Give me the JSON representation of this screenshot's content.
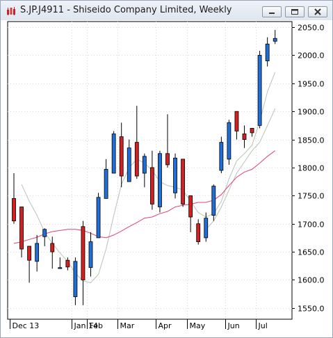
{
  "window": {
    "title": "S.JP.J4911 - Shiseido Company Limited, Weekly",
    "icon": "stock-chart-icon",
    "controls": [
      "minimize-icon",
      "maximize-icon",
      "close-icon"
    ]
  },
  "chart_data": {
    "type": "candlestick",
    "title": "S.JP.J4911 - Shiseido Company Limited, Weekly",
    "ylim": [
      1530,
      2060
    ],
    "yticks": [
      1550,
      1600,
      1650,
      1700,
      1750,
      1800,
      1850,
      1900,
      1950,
      2000,
      2050
    ],
    "ytick_labels": [
      "1550.0",
      "1600.0",
      "1650.0",
      "1700.0",
      "1750.0",
      "1800.0",
      "1850.0",
      "1900.0",
      "1950.0",
      "2000.0",
      "2050.0"
    ],
    "xtick_labels": [
      "Dec 13",
      "Jan 14",
      "Feb",
      "Mar",
      "Apr",
      "May",
      "Jun",
      "Jul"
    ],
    "xtick_bar_index": [
      0,
      8,
      10,
      14,
      19,
      23,
      28,
      32
    ],
    "grid": true,
    "colors": {
      "up": "#1f6fd6",
      "down": "#d42020",
      "ma_short": "#b5c4b5",
      "ma_long": "#e0407a"
    },
    "candles": [
      {
        "open": 1745,
        "high": 1790,
        "low": 1700,
        "close": 1705
      },
      {
        "open": 1730,
        "high": 1730,
        "low": 1640,
        "close": 1655
      },
      {
        "open": 1660,
        "high": 1660,
        "low": 1595,
        "close": 1635
      },
      {
        "open": 1633,
        "high": 1680,
        "low": 1615,
        "close": 1665
      },
      {
        "open": 1677,
        "high": 1692,
        "low": 1660,
        "close": 1690
      },
      {
        "open": 1665,
        "high": 1677,
        "low": 1620,
        "close": 1650
      },
      {
        "open": 1622,
        "high": 1640,
        "low": 1620,
        "close": 1622
      },
      {
        "open": 1635,
        "high": 1640,
        "low": 1617,
        "close": 1623
      },
      {
        "open": 1570,
        "high": 1640,
        "low": 1555,
        "close": 1633
      },
      {
        "open": 1695,
        "high": 1705,
        "low": 1555,
        "close": 1600
      },
      {
        "open": 1622,
        "high": 1685,
        "low": 1606,
        "close": 1668
      },
      {
        "open": 1675,
        "high": 1755,
        "low": 1675,
        "close": 1747
      },
      {
        "open": 1745,
        "high": 1815,
        "low": 1745,
        "close": 1797
      },
      {
        "open": 1790,
        "high": 1865,
        "low": 1790,
        "close": 1860
      },
      {
        "open": 1855,
        "high": 1880,
        "low": 1765,
        "close": 1785
      },
      {
        "open": 1775,
        "high": 1850,
        "low": 1775,
        "close": 1835
      },
      {
        "open": 1845,
        "high": 1910,
        "low": 1780,
        "close": 1785
      },
      {
        "open": 1790,
        "high": 1825,
        "low": 1765,
        "close": 1820
      },
      {
        "open": 1800,
        "high": 1830,
        "low": 1725,
        "close": 1735
      },
      {
        "open": 1730,
        "high": 1830,
        "low": 1720,
        "close": 1825
      },
      {
        "open": 1825,
        "high": 1895,
        "low": 1800,
        "close": 1805
      },
      {
        "open": 1755,
        "high": 1825,
        "low": 1745,
        "close": 1817
      },
      {
        "open": 1815,
        "high": 1815,
        "low": 1730,
        "close": 1735
      },
      {
        "open": 1750,
        "high": 1750,
        "low": 1685,
        "close": 1712
      },
      {
        "open": 1700,
        "high": 1708,
        "low": 1663,
        "close": 1668
      },
      {
        "open": 1675,
        "high": 1720,
        "low": 1668,
        "close": 1710
      },
      {
        "open": 1715,
        "high": 1770,
        "low": 1705,
        "close": 1767
      },
      {
        "open": 1795,
        "high": 1855,
        "low": 1790,
        "close": 1845
      },
      {
        "open": 1815,
        "high": 1885,
        "low": 1805,
        "close": 1880
      },
      {
        "open": 1900,
        "high": 1900,
        "low": 1850,
        "close": 1865
      },
      {
        "open": 1860,
        "high": 1875,
        "low": 1835,
        "close": 1850
      },
      {
        "open": 1870,
        "high": 1870,
        "low": 1855,
        "close": 1862
      },
      {
        "open": 1875,
        "high": 2008,
        "low": 1870,
        "close": 2000
      },
      {
        "open": 1990,
        "high": 2032,
        "low": 1980,
        "close": 2020
      },
      {
        "open": 2025,
        "high": 2045,
        "low": 2020,
        "close": 2030
      }
    ],
    "ma_short": [
      null,
      1770,
      1740,
      1715,
      1685,
      1665,
      1648,
      1633,
      1612,
      1598,
      1595,
      1610,
      1655,
      1715,
      1770,
      1800,
      1815,
      1808,
      1795,
      1775,
      1768,
      1765,
      1760,
      1740,
      1720,
      1712,
      1718,
      1740,
      1780,
      1812,
      1825,
      1840,
      1882,
      1935,
      1970
    ],
    "ma_long": [
      1665,
      1668,
      1672,
      1676,
      1682,
      1686,
      1688,
      1690,
      1690,
      1688,
      1683,
      1677,
      1675,
      1680,
      1687,
      1695,
      1702,
      1710,
      1712,
      1718,
      1722,
      1730,
      1733,
      1735,
      1738,
      1738,
      1742,
      1752,
      1768,
      1783,
      1792,
      1797,
      1808,
      1820,
      1830
    ],
    "ma_trail": [
      null,
      null,
      null,
      null,
      null,
      null,
      null,
      null,
      null,
      null,
      null,
      null,
      null,
      null,
      null,
      null,
      null,
      null,
      null,
      null,
      null,
      null,
      null,
      null,
      null,
      1690,
      1705,
      1730,
      1760,
      1790,
      1810,
      1830,
      1845,
      1875,
      1905
    ]
  }
}
